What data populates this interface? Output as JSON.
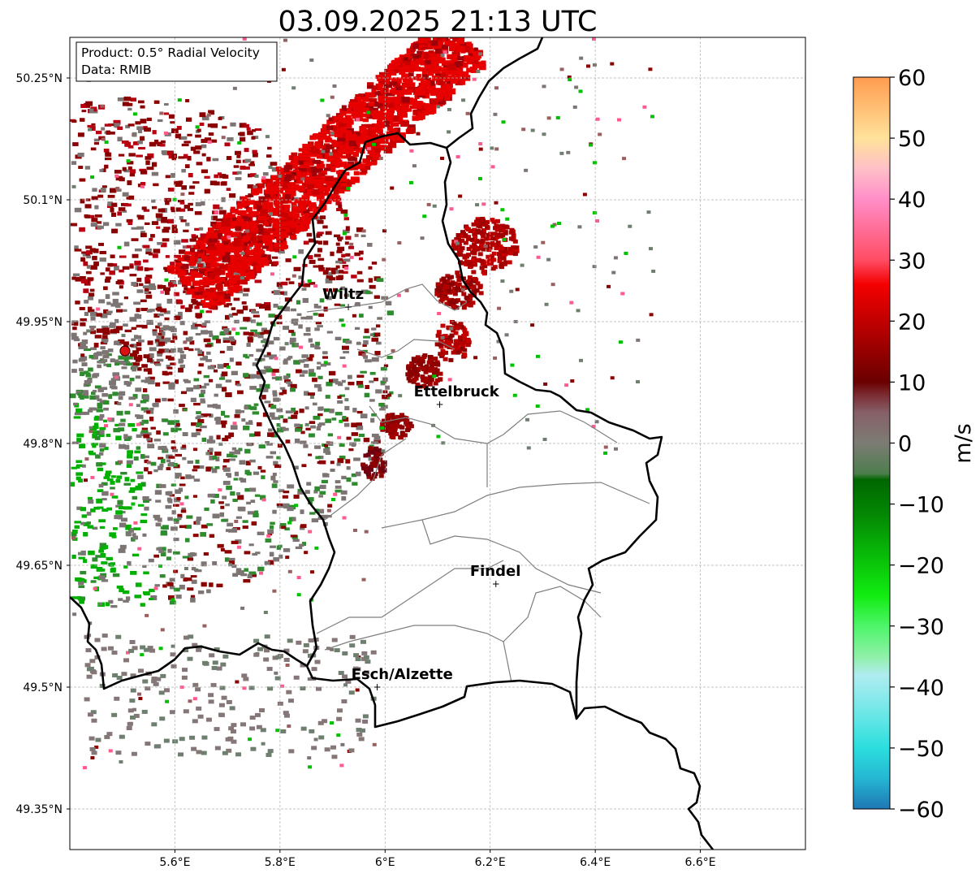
{
  "title": "03.09.2025 21:13 UTC",
  "info_box": {
    "product": "Product: 0.5° Radial Velocity",
    "source": "Data: RMIB"
  },
  "map": {
    "lon_range": [
      5.4,
      6.8
    ],
    "lat_range": [
      49.3,
      50.3
    ],
    "lon_ticks": [
      "5.6°E",
      "5.8°E",
      "6°E",
      "6.2°E",
      "6.4°E",
      "6.6°E"
    ],
    "lon_tick_values": [
      5.6,
      5.8,
      6.0,
      6.2,
      6.4,
      6.6
    ],
    "lat_ticks": [
      "50.25°N",
      "50.1°N",
      "49.95°N",
      "49.8°N",
      "49.65°N",
      "49.5°N",
      "49.35°N"
    ],
    "lat_tick_values": [
      50.25,
      50.1,
      49.95,
      49.8,
      49.65,
      49.5,
      49.35
    ],
    "grid": true,
    "radar_site": {
      "lon": 5.505,
      "lat": 49.914
    },
    "cities": [
      {
        "name": "Wiltz",
        "lon": 5.93,
        "lat": 49.968
      },
      {
        "name": "Ettelbruck",
        "lon": 6.104,
        "lat": 49.848
      },
      {
        "name": "Findel",
        "lon": 6.211,
        "lat": 49.627
      },
      {
        "name": "Esch/Alzette",
        "lon": 5.985,
        "lat": 49.5
      }
    ]
  },
  "colorbar": {
    "label": "m/s",
    "min": -60,
    "max": 60,
    "ticks": [
      "60",
      "50",
      "40",
      "30",
      "20",
      "10",
      "0",
      "−10",
      "−20",
      "−30",
      "−40",
      "−50",
      "−60"
    ],
    "tick_values": [
      60,
      50,
      40,
      30,
      20,
      10,
      0,
      -10,
      -20,
      -30,
      -40,
      -50,
      -60
    ],
    "stops": [
      {
        "v": -60,
        "c": "#1f77b4"
      },
      {
        "v": -55,
        "c": "#25b6d2"
      },
      {
        "v": -50,
        "c": "#2bdede"
      },
      {
        "v": -45,
        "c": "#66e6e6"
      },
      {
        "v": -38,
        "c": "#b0ecf0"
      },
      {
        "v": -35,
        "c": "#8ff0a8"
      },
      {
        "v": -30,
        "c": "#4ef56a"
      },
      {
        "v": -25,
        "c": "#11ec11"
      },
      {
        "v": -18,
        "c": "#08b808"
      },
      {
        "v": -12,
        "c": "#048a04"
      },
      {
        "v": -6,
        "c": "#006600"
      },
      {
        "v": -5,
        "c": "#4d7d4d"
      },
      {
        "v": 0,
        "c": "#7c7c74"
      },
      {
        "v": 5,
        "c": "#866068"
      },
      {
        "v": 8,
        "c": "#7a2a30"
      },
      {
        "v": 10,
        "c": "#6a0000"
      },
      {
        "v": 18,
        "c": "#b00000"
      },
      {
        "v": 26,
        "c": "#f40000"
      },
      {
        "v": 30,
        "c": "#ff4c64"
      },
      {
        "v": 40,
        "c": "#ff8ec8"
      },
      {
        "v": 45,
        "c": "#ffc0c8"
      },
      {
        "v": 50,
        "c": "#ffe29a"
      },
      {
        "v": 60,
        "c": "#ff9c50"
      }
    ]
  },
  "colors": {
    "inbound_strong": "#00b000",
    "inbound": "#2e8b2e",
    "near_zero": "#7d7573",
    "outbound": "#8b0000",
    "outbound_strong": "#e60000",
    "radar_marker": "#dd1111"
  }
}
